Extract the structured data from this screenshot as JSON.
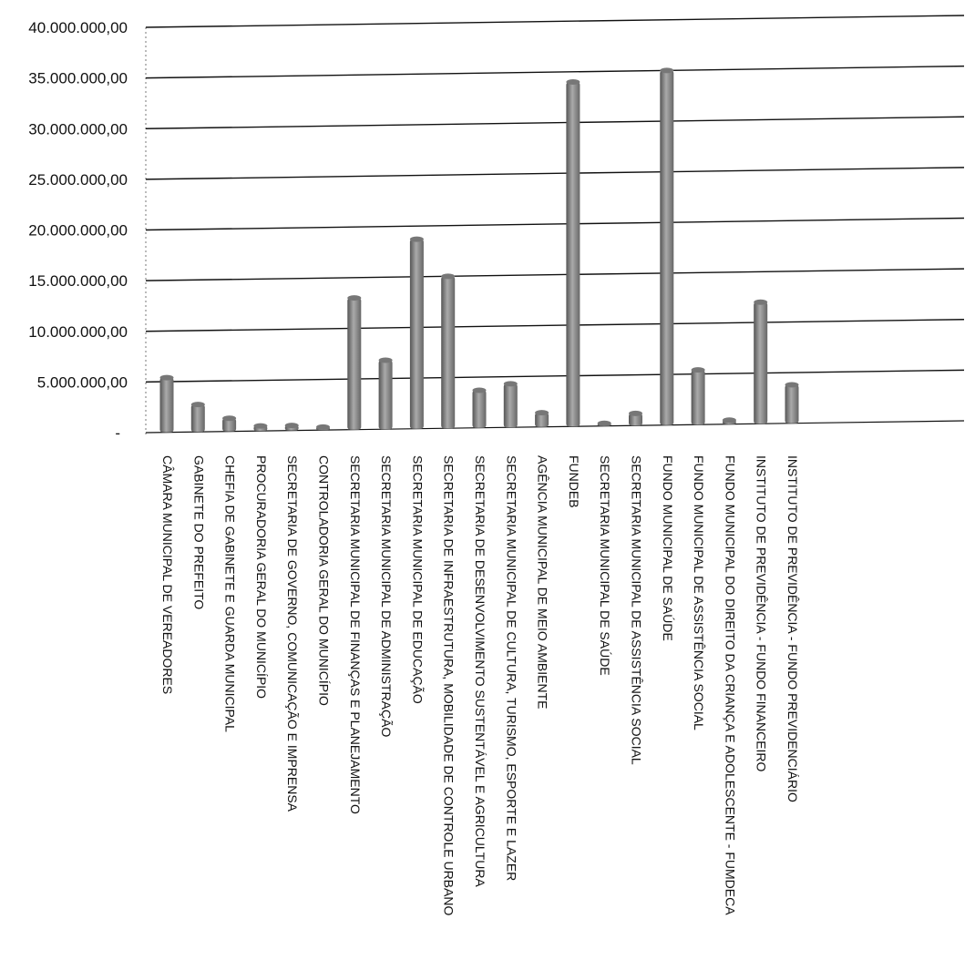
{
  "chart_data": {
    "type": "bar",
    "title": "",
    "xlabel": "",
    "ylabel": "",
    "ylim": [
      0,
      40000000
    ],
    "y_ticks": [
      {
        "value": 0,
        "label": "-"
      },
      {
        "value": 5000000,
        "label": "5.000.000,00"
      },
      {
        "value": 10000000,
        "label": "10.000.000,00"
      },
      {
        "value": 15000000,
        "label": "15.000.000,00"
      },
      {
        "value": 20000000,
        "label": "20.000.000,00"
      },
      {
        "value": 25000000,
        "label": "25.000.000,00"
      },
      {
        "value": 30000000,
        "label": "30.000.000,00"
      },
      {
        "value": 35000000,
        "label": "35.000.000,00"
      },
      {
        "value": 40000000,
        "label": "40.000.000,00"
      }
    ],
    "grid": true,
    "categories": [
      "CÂMARA MUNICIPAL DE VEREADORES",
      "GABINETE DO PREFEITO",
      "CHEFIA DE GABINETE E GUARDA MUNICIPAL",
      "PROCURADORIA GERAL DO MUNICÍPIO",
      "SECRETARIA DE GOVERNO, COMUNICAÇÃO E IMPRENSA",
      "CONTROLADORIA GERAL DO MUNICÍPIO",
      "SECRETARIA MUNICIPAL DE FINANÇAS E PLANEJAMENTO",
      "SECRETARIA MUNICIPAL DE ADMINISTRAÇÃO",
      "SECRETARIA MUNICIPAL DE EDUCAÇÃO",
      "SECRETARIA DE INFRAESTRUTURA, MOBILIDADE DE CONTROLE URBANO",
      "SECRETARIA DE DESENVOLVIMENTO SUSTENTÁVEL E AGRICULTURA",
      "SECRETARIA MUNICIPAL DE CULTURA, TURISMO, ESPORTE E LAZER",
      "AGÊNCIA MUNICIPAL DE MEIO AMBIENTE",
      "FUNDEB",
      "SECRETARIA MUNICIPAL DE SAÚDE",
      "SECRETARIA MUNICIPAL DE ASSISTÊNCIA SOCIAL",
      "FUNDO MUNICIPAL DE SAÚDE",
      "FUNDO MUNICIPAL DE ASSISTÊNCIA SOCIAL",
      "FUNDO MUNICIPAL DO DIREITO DA CRIANÇA E ADOLESCENTE - FUMDECA",
      "INSTITUTO DE PREVIDÊNCIA - FUNDO FINANCEIRO",
      "INSTITUTO DE PREVIDÊNCIA - FUNDO PREVIDENCIÁRIO"
    ],
    "values": [
      5400000,
      2700000,
      1300000,
      500000,
      500000,
      300000,
      13000000,
      6800000,
      18700000,
      15000000,
      3700000,
      4300000,
      1400000,
      34000000,
      200000,
      1200000,
      35000000,
      5400000,
      400000,
      12000000,
      3800000
    ]
  }
}
